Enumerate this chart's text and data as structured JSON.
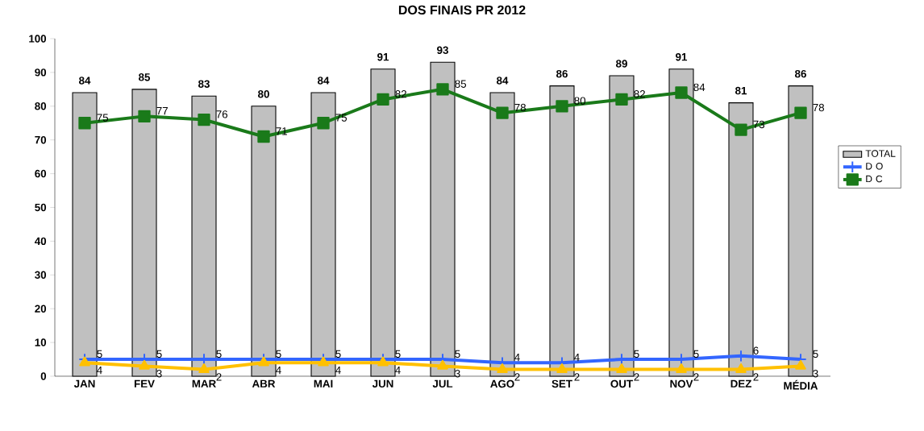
{
  "chart_data": {
    "type": "bar",
    "title": "DOS FINAIS PR 2012",
    "categories": [
      "JAN",
      "FEV",
      "MAR",
      "ABR",
      "MAI",
      "JUN",
      "JUL",
      "AGO",
      "SET",
      "OUT",
      "NOV",
      "DEZ",
      "MÉDIA"
    ],
    "series": [
      {
        "name": "TOTAL",
        "color": "#c0c0c0",
        "values": [
          84,
          85,
          83,
          80,
          84,
          91,
          93,
          84,
          86,
          89,
          91,
          81,
          86
        ]
      },
      {
        "name": "D  O",
        "type": "line",
        "color": "#3366ff",
        "marker": "cross",
        "values": [
          5,
          5,
          5,
          5,
          5,
          5,
          5,
          4,
          4,
          5,
          5,
          6,
          5
        ]
      },
      {
        "name": "D  C",
        "type": "line",
        "color": "#1a7a1a",
        "marker": "square",
        "values": [
          75,
          77,
          76,
          71,
          75,
          82,
          85,
          78,
          80,
          82,
          84,
          73,
          78
        ]
      },
      {
        "type": "line",
        "color": "#ffc000",
        "marker": "triangle",
        "values": [
          4,
          3,
          2,
          4,
          4,
          4,
          3,
          2,
          2,
          2,
          2,
          2,
          3
        ]
      }
    ],
    "ylim": [
      0,
      100
    ],
    "yticks": [
      0,
      10,
      20,
      30,
      40,
      50,
      60,
      70,
      80,
      90,
      100
    ],
    "data_labels": true,
    "legend": "right",
    "grid": false
  }
}
